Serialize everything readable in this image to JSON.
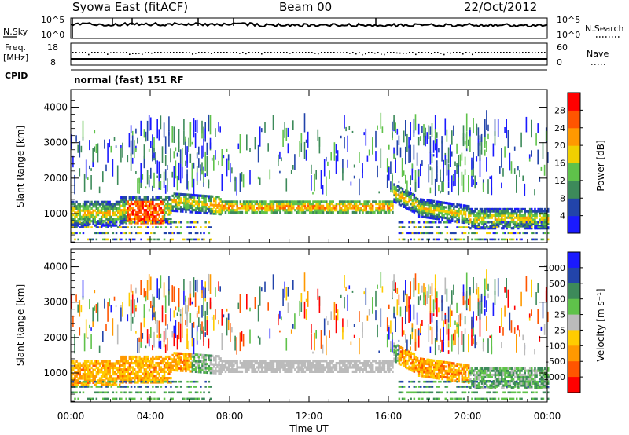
{
  "header": {
    "station": "Syowa East (fitACF)",
    "beam": "Beam 00",
    "date": "22/Oct/2012"
  },
  "noise_panel": {
    "left_label": "N.Sky",
    "right_label": "N.Search",
    "left_ticks": [
      "10^5",
      "10^0"
    ],
    "right_ticks": [
      "10^5",
      "10^0"
    ]
  },
  "freq_panel": {
    "left_label_top": "Freq.",
    "left_label_bottom": "[MHz]",
    "right_label": "Nave",
    "left_ticks": [
      "18",
      "8"
    ],
    "right_ticks": [
      "60",
      "0"
    ]
  },
  "cpid": {
    "label": "CPID",
    "value": "normal (fast) 151 RF"
  },
  "chart_data": [
    {
      "type": "heatmap",
      "name": "power",
      "ylabel": "Slant Range [km]",
      "ylim": [
        180,
        4500
      ],
      "y_ticks": [
        "1000",
        "2000",
        "3000",
        "4000"
      ],
      "x_ticks": [
        "00:00",
        "04:00",
        "08:00",
        "12:00",
        "16:00",
        "20:00",
        "00:00"
      ],
      "colorbar": {
        "label": "Power [dB]",
        "levels": [
          "4",
          "8",
          "12",
          "16",
          "20",
          "24",
          "28"
        ],
        "colors": [
          "#1a1aff",
          "#2244aa",
          "#3d8a5a",
          "#5fc24a",
          "#f0d000",
          "#ff9900",
          "#ff5500",
          "#ff0000"
        ]
      }
    },
    {
      "type": "heatmap",
      "name": "velocity",
      "ylabel": "Slant Range [km]",
      "ylim": [
        180,
        4500
      ],
      "y_ticks": [
        "1000",
        "2000",
        "3000",
        "4000"
      ],
      "x_ticks": [
        "00:00",
        "04:00",
        "08:00",
        "12:00",
        "16:00",
        "20:00",
        "00:00"
      ],
      "xlabel": "Time UT",
      "colorbar": {
        "label": "Velocity [m s⁻¹]",
        "levels": [
          "1000",
          "500",
          "100",
          "25",
          "-25",
          "-100",
          "-500",
          "-1000"
        ],
        "colors": [
          "#1a1aff",
          "#2244aa",
          "#3d8a5a",
          "#5fc24a",
          "#bbbbbb",
          "#ffcc00",
          "#ff9900",
          "#ff5500",
          "#ff0000"
        ]
      }
    }
  ]
}
